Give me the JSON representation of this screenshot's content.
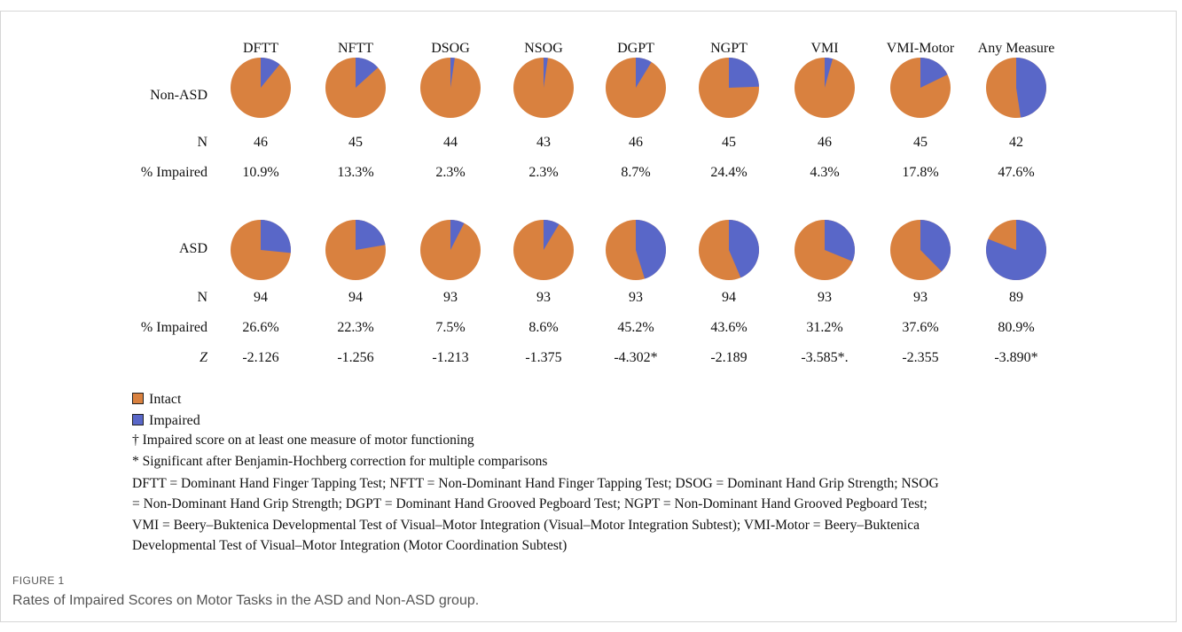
{
  "chart_data": {
    "type": "pie",
    "colors": {
      "intact": "#d9813f",
      "impaired": "#5967c8"
    },
    "measures": [
      "DFTT",
      "NFTT",
      "DSOG",
      "NSOG",
      "DGPT",
      "NGPT",
      "VMI",
      "VMI-Motor",
      "Any Measure"
    ],
    "groups": [
      {
        "label": "Non-ASD",
        "n_label": "N",
        "pct_label": "% Impaired",
        "n": [
          "46",
          "45",
          "44",
          "43",
          "46",
          "45",
          "46",
          "45",
          "42"
        ],
        "pct_impaired": [
          "10.9%",
          "13.3%",
          "2.3%",
          "2.3%",
          "8.7%",
          "24.4%",
          "4.3%",
          "17.8%",
          "47.6%"
        ],
        "impaired_fraction": [
          0.109,
          0.133,
          0.023,
          0.023,
          0.087,
          0.244,
          0.043,
          0.178,
          0.476
        ]
      },
      {
        "label": "ASD",
        "n_label": "N",
        "pct_label": "% Impaired",
        "n": [
          "94",
          "94",
          "93",
          "93",
          "93",
          "94",
          "93",
          "93",
          "89"
        ],
        "pct_impaired": [
          "26.6%",
          "22.3%",
          "7.5%",
          "8.6%",
          "45.2%",
          "43.6%",
          "31.2%",
          "37.6%",
          "80.9%"
        ],
        "impaired_fraction": [
          0.266,
          0.223,
          0.075,
          0.086,
          0.452,
          0.436,
          0.312,
          0.376,
          0.809
        ],
        "z_label": "Z",
        "z": [
          "-2.126",
          "-1.256",
          "-1.213",
          "-1.375",
          "-4.302*",
          "-2.189",
          "-3.585*.",
          "-2.355",
          "-3.890*"
        ]
      }
    ]
  },
  "legend": {
    "intact": "Intact",
    "impaired": "Impaired",
    "dagger_note": "† Impaired score on at least one measure of motor functioning",
    "star_note": "* Significant after Benjamin-Hochberg correction for multiple comparisons"
  },
  "abbreviations": [
    "DFTT = Dominant Hand Finger Tapping Test; NFTT = Non-Dominant Hand Finger Tapping Test; DSOG = Dominant Hand Grip Strength; NSOG",
    "= Non-Dominant Hand Grip Strength; DGPT = Dominant Hand Grooved Pegboard Test; NGPT = Non-Dominant Hand Grooved Pegboard Test;",
    "VMI = Beery–Buktenica Developmental Test of Visual–Motor Integration (Visual–Motor Integration Subtest); VMI-Motor = Beery–Buktenica",
    "Developmental Test of Visual–Motor Integration (Motor Coordination Subtest)"
  ],
  "figure": {
    "label": "FIGURE 1",
    "caption": "Rates of Impaired Scores on Motor Tasks in the ASD and Non-ASD group."
  }
}
